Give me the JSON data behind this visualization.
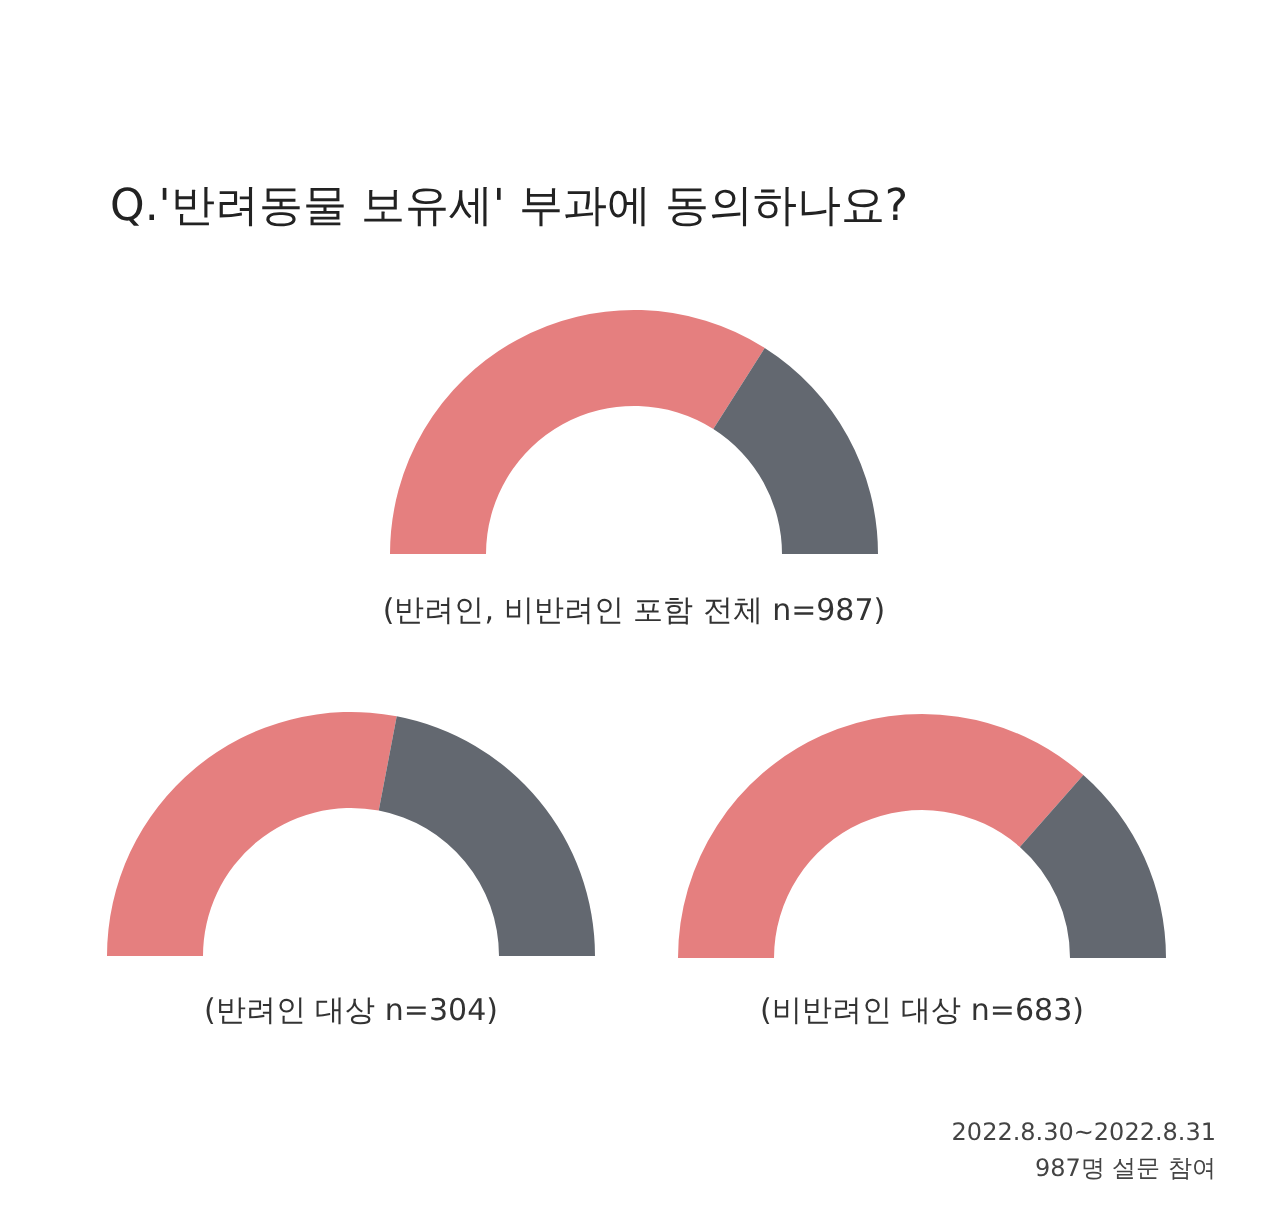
{
  "chart_data": [
    {
      "type": "donut",
      "title": "Q.'반려동물 보유세' 부과에 동의하나요?",
      "subtitle": "(반려인, 비반려인 포함 전체 n=987)",
      "categories": [
        null,
        null
      ],
      "values": [
        68,
        32
      ],
      "colors": [
        "#e57f7f",
        "#636870"
      ]
    },
    {
      "type": "donut",
      "subtitle": "(반려인 대상 n=304)",
      "categories": [
        null,
        null
      ],
      "values": [
        56,
        44
      ],
      "colors": [
        "#e57f7f",
        "#636870"
      ]
    },
    {
      "type": "donut",
      "subtitle": "(비반려인 대상 n=683)",
      "categories": [
        null,
        null
      ],
      "values": [
        73,
        27
      ],
      "colors": [
        "#e57f7f",
        "#636870"
      ],
      "annotations": [
        "2022.8.30~2022.8.31",
        "987명 설문 참여"
      ]
    }
  ]
}
